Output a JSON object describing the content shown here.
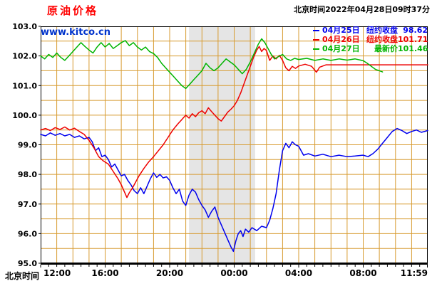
{
  "header": {
    "title": "原油价格",
    "title_color": "#ff0000",
    "watermark": "www.kitco.cn",
    "watermark_color": "#0033cc",
    "timestamp": "北京时间2022年04月28日09时37分"
  },
  "legend": [
    {
      "date": "04月25日",
      "label": "纽约收盘",
      "value": "98.62",
      "color": "#0000ee"
    },
    {
      "date": "04月26日",
      "label": "纽约收盘",
      "value": "101.71",
      "color": "#ee0000"
    },
    {
      "date": "04月27日",
      "label": "最新价",
      "value": "101.46",
      "color": "#00b400"
    }
  ],
  "chart_data": {
    "type": "line",
    "title": "原油价格",
    "xlabel": "北京时间",
    "ylabel": "",
    "x_unit": "hours since 12:00 Beijing time",
    "xlim": [
      0,
      24
    ],
    "ylim": [
      95.0,
      103.0
    ],
    "legend_position": "top-right",
    "x_ticks": [
      {
        "hour": 0,
        "label": "12:00"
      },
      {
        "hour": 4,
        "label": "16:00"
      },
      {
        "hour": 8,
        "label": "20:00"
      },
      {
        "hour": 12,
        "label": "00:00"
      },
      {
        "hour": 16,
        "label": "04:00"
      },
      {
        "hour": 20,
        "label": "08:00"
      },
      {
        "hour": 23.98,
        "label": "11:59"
      }
    ],
    "y_ticks": [
      103.0,
      102.0,
      101.0,
      100.0,
      99.0,
      98.0,
      97.0,
      96.0,
      95.0
    ],
    "grid": {
      "on": true,
      "color": "#d79b30",
      "x_step_hours": 1,
      "y_step": 0.5
    },
    "band": {
      "from_hour": 9.2,
      "to_hour": 13.3,
      "color": "#e5e5e5"
    },
    "colors": {
      "border": "#000000",
      "axis_text": "#000000",
      "background": "#ffffff"
    },
    "series": [
      {
        "name": "04月25日",
        "close_label": "纽约收盘",
        "close": 98.62,
        "color": "#0000ee",
        "points": [
          [
            0,
            99.35
          ],
          [
            0.3,
            99.3
          ],
          [
            0.6,
            99.4
          ],
          [
            0.9,
            99.32
          ],
          [
            1.2,
            99.38
          ],
          [
            1.5,
            99.3
          ],
          [
            1.8,
            99.35
          ],
          [
            2.1,
            99.25
          ],
          [
            2.4,
            99.3
          ],
          [
            2.7,
            99.2
          ],
          [
            3,
            99.25
          ],
          [
            3.2,
            99.1
          ],
          [
            3.4,
            98.8
          ],
          [
            3.6,
            98.9
          ],
          [
            3.8,
            98.6
          ],
          [
            4,
            98.65
          ],
          [
            4.2,
            98.5
          ],
          [
            4.4,
            98.25
          ],
          [
            4.6,
            98.35
          ],
          [
            4.8,
            98.15
          ],
          [
            5,
            97.95
          ],
          [
            5.2,
            98.0
          ],
          [
            5.4,
            97.8
          ],
          [
            5.6,
            97.65
          ],
          [
            5.8,
            97.45
          ],
          [
            6,
            97.35
          ],
          [
            6.2,
            97.55
          ],
          [
            6.4,
            97.35
          ],
          [
            6.6,
            97.6
          ],
          [
            6.8,
            97.85
          ],
          [
            7,
            98.05
          ],
          [
            7.2,
            97.9
          ],
          [
            7.4,
            98.0
          ],
          [
            7.6,
            97.88
          ],
          [
            7.8,
            97.92
          ],
          [
            8,
            97.8
          ],
          [
            8.2,
            97.55
          ],
          [
            8.4,
            97.35
          ],
          [
            8.6,
            97.5
          ],
          [
            8.8,
            97.1
          ],
          [
            9,
            96.95
          ],
          [
            9.2,
            97.3
          ],
          [
            9.4,
            97.5
          ],
          [
            9.6,
            97.4
          ],
          [
            9.8,
            97.15
          ],
          [
            10,
            96.95
          ],
          [
            10.2,
            96.8
          ],
          [
            10.4,
            96.55
          ],
          [
            10.6,
            96.75
          ],
          [
            10.8,
            96.9
          ],
          [
            11,
            96.55
          ],
          [
            11.2,
            96.3
          ],
          [
            11.4,
            96.05
          ],
          [
            11.6,
            95.8
          ],
          [
            11.8,
            95.55
          ],
          [
            11.95,
            95.4
          ],
          [
            12.1,
            95.75
          ],
          [
            12.25,
            96.0
          ],
          [
            12.4,
            96.1
          ],
          [
            12.55,
            95.9
          ],
          [
            12.7,
            96.15
          ],
          [
            12.9,
            96.05
          ],
          [
            13.1,
            96.2
          ],
          [
            13.4,
            96.1
          ],
          [
            13.7,
            96.25
          ],
          [
            14,
            96.2
          ],
          [
            14.2,
            96.45
          ],
          [
            14.4,
            96.85
          ],
          [
            14.6,
            97.35
          ],
          [
            14.8,
            98.15
          ],
          [
            15,
            98.8
          ],
          [
            15.2,
            99.05
          ],
          [
            15.4,
            98.9
          ],
          [
            15.6,
            99.1
          ],
          [
            15.8,
            99.0
          ],
          [
            16,
            98.95
          ],
          [
            16.3,
            98.65
          ],
          [
            16.6,
            98.7
          ],
          [
            17,
            98.62
          ],
          [
            17.5,
            98.68
          ],
          [
            18,
            98.6
          ],
          [
            18.5,
            98.65
          ],
          [
            19,
            98.6
          ],
          [
            19.5,
            98.62
          ],
          [
            20,
            98.65
          ],
          [
            20.3,
            98.6
          ],
          [
            20.6,
            98.7
          ],
          [
            20.9,
            98.85
          ],
          [
            21.2,
            99.05
          ],
          [
            21.5,
            99.25
          ],
          [
            21.8,
            99.45
          ],
          [
            22.1,
            99.55
          ],
          [
            22.4,
            99.48
          ],
          [
            22.7,
            99.38
          ],
          [
            23,
            99.45
          ],
          [
            23.3,
            99.5
          ],
          [
            23.6,
            99.42
          ],
          [
            24,
            99.48
          ]
        ]
      },
      {
        "name": "04月26日",
        "close_label": "纽约收盘",
        "close": 101.71,
        "color": "#ee0000",
        "points": [
          [
            0,
            99.5
          ],
          [
            0.3,
            99.55
          ],
          [
            0.6,
            99.48
          ],
          [
            0.9,
            99.58
          ],
          [
            1.2,
            99.52
          ],
          [
            1.5,
            99.6
          ],
          [
            1.8,
            99.5
          ],
          [
            2.1,
            99.56
          ],
          [
            2.4,
            99.45
          ],
          [
            2.7,
            99.35
          ],
          [
            3,
            99.15
          ],
          [
            3.3,
            98.9
          ],
          [
            3.6,
            98.6
          ],
          [
            3.9,
            98.45
          ],
          [
            4.2,
            98.35
          ],
          [
            4.5,
            98.1
          ],
          [
            4.8,
            97.85
          ],
          [
            5,
            97.65
          ],
          [
            5.2,
            97.4
          ],
          [
            5.35,
            97.22
          ],
          [
            5.5,
            97.38
          ],
          [
            5.7,
            97.55
          ],
          [
            5.9,
            97.75
          ],
          [
            6.1,
            97.95
          ],
          [
            6.4,
            98.2
          ],
          [
            6.7,
            98.42
          ],
          [
            7,
            98.6
          ],
          [
            7.3,
            98.8
          ],
          [
            7.6,
            99.0
          ],
          [
            7.9,
            99.25
          ],
          [
            8.2,
            99.5
          ],
          [
            8.5,
            99.7
          ],
          [
            8.8,
            99.88
          ],
          [
            9,
            100.0
          ],
          [
            9.2,
            99.9
          ],
          [
            9.4,
            100.05
          ],
          [
            9.6,
            99.95
          ],
          [
            9.8,
            100.08
          ],
          [
            10,
            100.15
          ],
          [
            10.2,
            100.05
          ],
          [
            10.4,
            100.25
          ],
          [
            10.6,
            100.12
          ],
          [
            10.8,
            100.0
          ],
          [
            11,
            99.88
          ],
          [
            11.2,
            99.8
          ],
          [
            11.4,
            99.95
          ],
          [
            11.6,
            100.1
          ],
          [
            11.8,
            100.2
          ],
          [
            12,
            100.32
          ],
          [
            12.2,
            100.5
          ],
          [
            12.4,
            100.75
          ],
          [
            12.6,
            101.05
          ],
          [
            12.8,
            101.35
          ],
          [
            13,
            101.65
          ],
          [
            13.2,
            101.95
          ],
          [
            13.4,
            102.2
          ],
          [
            13.55,
            102.32
          ],
          [
            13.7,
            102.15
          ],
          [
            13.85,
            102.25
          ],
          [
            14,
            102.18
          ],
          [
            14.2,
            101.85
          ],
          [
            14.4,
            102.0
          ],
          [
            14.6,
            101.9
          ],
          [
            14.8,
            102.02
          ],
          [
            15,
            101.85
          ],
          [
            15.2,
            101.6
          ],
          [
            15.4,
            101.5
          ],
          [
            15.6,
            101.65
          ],
          [
            15.8,
            101.58
          ],
          [
            16,
            101.66
          ],
          [
            16.4,
            101.72
          ],
          [
            16.8,
            101.65
          ],
          [
            17.1,
            101.45
          ],
          [
            17.3,
            101.62
          ],
          [
            17.7,
            101.7
          ],
          [
            18.2,
            101.7
          ],
          [
            19,
            101.7
          ],
          [
            20,
            101.7
          ],
          [
            21,
            101.7
          ],
          [
            22,
            101.7
          ],
          [
            23,
            101.7
          ],
          [
            24,
            101.7
          ]
        ]
      },
      {
        "name": "04月27日",
        "close_label": "最新价",
        "close": 101.46,
        "color": "#00b400",
        "points": [
          [
            0,
            102.0
          ],
          [
            0.25,
            101.9
          ],
          [
            0.5,
            102.05
          ],
          [
            0.75,
            101.95
          ],
          [
            1,
            102.1
          ],
          [
            1.25,
            101.95
          ],
          [
            1.5,
            101.85
          ],
          [
            1.75,
            102.0
          ],
          [
            2,
            102.15
          ],
          [
            2.25,
            102.3
          ],
          [
            2.5,
            102.45
          ],
          [
            2.75,
            102.32
          ],
          [
            3,
            102.2
          ],
          [
            3.25,
            102.1
          ],
          [
            3.5,
            102.3
          ],
          [
            3.75,
            102.45
          ],
          [
            4,
            102.3
          ],
          [
            4.25,
            102.42
          ],
          [
            4.5,
            102.25
          ],
          [
            4.75,
            102.35
          ],
          [
            5,
            102.45
          ],
          [
            5.25,
            102.52
          ],
          [
            5.5,
            102.35
          ],
          [
            5.75,
            102.45
          ],
          [
            6,
            102.3
          ],
          [
            6.25,
            102.2
          ],
          [
            6.5,
            102.3
          ],
          [
            6.75,
            102.15
          ],
          [
            7,
            102.08
          ],
          [
            7.25,
            101.95
          ],
          [
            7.5,
            101.75
          ],
          [
            7.75,
            101.6
          ],
          [
            8,
            101.45
          ],
          [
            8.25,
            101.3
          ],
          [
            8.5,
            101.15
          ],
          [
            8.75,
            101.0
          ],
          [
            9,
            100.9
          ],
          [
            9.25,
            101.05
          ],
          [
            9.5,
            101.2
          ],
          [
            9.75,
            101.35
          ],
          [
            10,
            101.5
          ],
          [
            10.25,
            101.75
          ],
          [
            10.5,
            101.6
          ],
          [
            10.75,
            101.5
          ],
          [
            11,
            101.6
          ],
          [
            11.25,
            101.75
          ],
          [
            11.5,
            101.9
          ],
          [
            11.75,
            101.8
          ],
          [
            12,
            101.7
          ],
          [
            12.25,
            101.55
          ],
          [
            12.5,
            101.4
          ],
          [
            12.75,
            101.55
          ],
          [
            13,
            101.8
          ],
          [
            13.25,
            102.1
          ],
          [
            13.5,
            102.4
          ],
          [
            13.7,
            102.58
          ],
          [
            13.9,
            102.45
          ],
          [
            14.1,
            102.25
          ],
          [
            14.3,
            102.05
          ],
          [
            14.5,
            101.9
          ],
          [
            14.75,
            101.98
          ],
          [
            15,
            102.05
          ],
          [
            15.25,
            101.9
          ],
          [
            15.5,
            101.85
          ],
          [
            15.75,
            101.92
          ],
          [
            16,
            101.88
          ],
          [
            16.5,
            101.92
          ],
          [
            17,
            101.85
          ],
          [
            17.5,
            101.9
          ],
          [
            18,
            101.85
          ],
          [
            18.5,
            101.9
          ],
          [
            19,
            101.86
          ],
          [
            19.5,
            101.9
          ],
          [
            20,
            101.84
          ],
          [
            20.25,
            101.75
          ],
          [
            20.5,
            101.65
          ],
          [
            20.75,
            101.55
          ],
          [
            21,
            101.5
          ],
          [
            21.2,
            101.46
          ]
        ]
      }
    ]
  }
}
